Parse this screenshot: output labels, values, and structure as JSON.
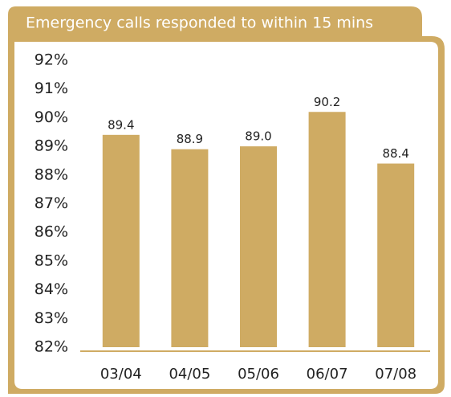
{
  "chart_data": {
    "type": "bar",
    "title": "Emergency calls responded to within 15 mins",
    "categories": [
      "03/04",
      "04/05",
      "05/06",
      "06/07",
      "07/08"
    ],
    "values": [
      89.4,
      88.9,
      89.0,
      90.2,
      88.4
    ],
    "value_labels": [
      "89.4",
      "88.9",
      "89.0",
      "90.2",
      "88.4"
    ],
    "color": "#cfab63",
    "ylim": [
      82,
      92
    ],
    "yticks": [
      {
        "value": 82,
        "label": "82%"
      },
      {
        "value": 83,
        "label": "83%"
      },
      {
        "value": 84,
        "label": "84%"
      },
      {
        "value": 85,
        "label": "85%"
      },
      {
        "value": 86,
        "label": "86%"
      },
      {
        "value": 87,
        "label": "87%"
      },
      {
        "value": 88,
        "label": "88%"
      },
      {
        "value": 89,
        "label": "89%"
      },
      {
        "value": 90,
        "label": "90%"
      },
      {
        "value": 91,
        "label": "91%"
      },
      {
        "value": 92,
        "label": "92%"
      }
    ]
  }
}
